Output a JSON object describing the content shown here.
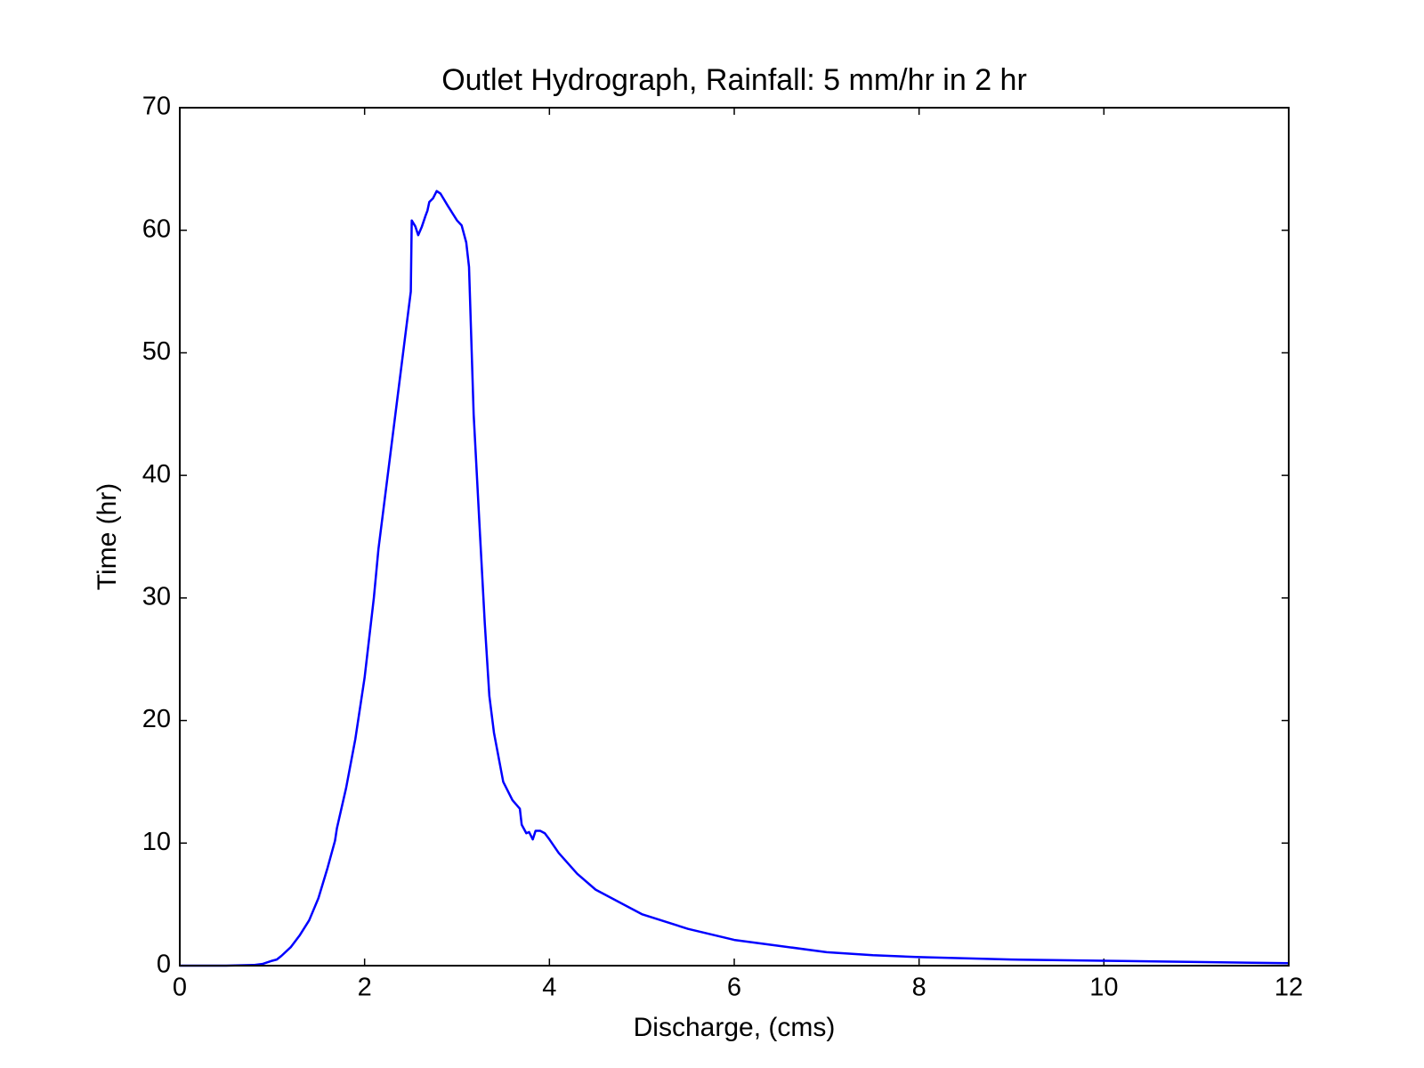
{
  "chart_data": {
    "type": "line",
    "title": "Outlet Hydrograph, Rainfall: 5 mm/hr in 2 hr",
    "x_label": "Discharge, (cms)",
    "y_label": "Time (hr)",
    "xlim": [
      0,
      12
    ],
    "ylim": [
      0,
      70
    ],
    "xticks": [
      0,
      2,
      4,
      6,
      8,
      10,
      12
    ],
    "yticks": [
      0,
      10,
      20,
      30,
      40,
      50,
      60,
      70
    ],
    "grid": false,
    "series": [
      {
        "color": "#0000ff",
        "x": [
          0,
          0.5,
          0.8,
          0.9,
          1.0,
          1.05,
          1.1,
          1.2,
          1.3,
          1.4,
          1.5,
          1.6,
          1.68,
          1.7,
          1.8,
          1.9,
          2.0,
          2.1,
          2.15,
          2.25,
          2.3,
          2.4,
          2.45,
          2.5,
          2.51,
          2.55,
          2.58,
          2.62,
          2.66,
          2.68,
          2.7,
          2.74,
          2.78,
          2.82,
          2.9,
          3.0,
          3.05,
          3.1,
          3.13,
          3.18,
          3.25,
          3.3,
          3.35,
          3.4,
          3.5,
          3.6,
          3.68,
          3.7,
          3.75,
          3.78,
          3.82,
          3.85,
          3.9,
          3.95,
          4.0,
          4.1,
          4.3,
          4.5,
          5,
          5.5,
          6,
          6.5,
          7,
          7.5,
          8,
          9,
          10,
          11,
          12
        ],
        "values": [
          0,
          0,
          0.05,
          0.15,
          0.4,
          0.5,
          0.8,
          1.5,
          2.5,
          3.7,
          5.5,
          8,
          10.2,
          11.2,
          14.5,
          18.5,
          23.5,
          30,
          34,
          40,
          43,
          49,
          52,
          55,
          60.8,
          60.3,
          59.6,
          60.3,
          61.2,
          61.6,
          62.3,
          62.6,
          63.2,
          63.0,
          62.0,
          60.8,
          60.4,
          59,
          57,
          45,
          35,
          28,
          22,
          19,
          15,
          13.5,
          12.8,
          11.5,
          10.8,
          10.9,
          10.3,
          11.0,
          11.0,
          10.8,
          10.3,
          9.2,
          7.5,
          6.2,
          4.2,
          3,
          2.1,
          1.6,
          1.1,
          0.85,
          0.7,
          0.5,
          0.4,
          0.3,
          0.2
        ]
      }
    ]
  }
}
